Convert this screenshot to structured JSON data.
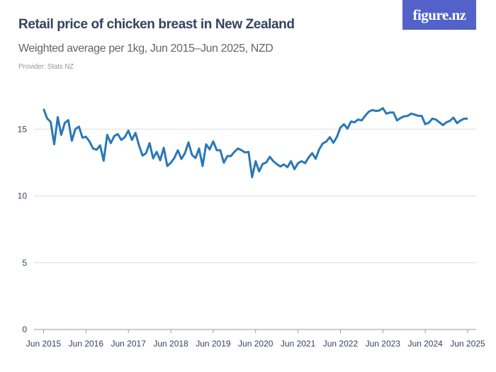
{
  "header": {
    "title": "Retail price of chicken breast in New Zealand",
    "subtitle": "Weighted average per 1kg, Jun 2015–Jun 2025, NZD",
    "provider": "Provider: Stats NZ",
    "logo_text": "figure.nz"
  },
  "colors": {
    "line": "#2a78b6",
    "logo_bg": "#5262c8",
    "grid": "#dddddd"
  },
  "chart_data": {
    "type": "line",
    "title": "Retail price of chicken breast in New Zealand",
    "ylim": [
      0,
      17
    ],
    "yticks": [
      0,
      5,
      10,
      15
    ],
    "ytick_labels": [
      "0",
      "5",
      "10",
      "15"
    ],
    "xtick_labels": [
      "Jun 2015",
      "Jun 2016",
      "Jun 2017",
      "Jun 2018",
      "Jun 2019",
      "Jun 2020",
      "Jun 2021",
      "Jun 2022",
      "Jun 2023",
      "Jun 2024",
      "Jun 2025"
    ],
    "grid": true,
    "x_start": "Jun 2015",
    "x_end": "Jun 2025",
    "frequency": "monthly",
    "values": [
      16.52,
      15.81,
      15.54,
      13.87,
      15.9,
      14.57,
      15.46,
      15.67,
      14.13,
      15.01,
      15.19,
      14.36,
      14.43,
      14.08,
      13.55,
      13.46,
      13.78,
      12.63,
      14.57,
      13.95,
      14.48,
      14.63,
      14.19,
      14.4,
      14.89,
      14.19,
      14.72,
      13.78,
      13.02,
      13.2,
      13.95,
      12.81,
      13.3,
      12.67,
      13.6,
      12.24,
      12.49,
      12.84,
      13.42,
      12.77,
      13.2,
      14.01,
      13.07,
      12.84,
      13.55,
      12.24,
      13.87,
      13.48,
      14.08,
      13.42,
      13.42,
      12.49,
      12.98,
      12.98,
      13.3,
      13.55,
      13.42,
      13.25,
      13.3,
      11.4,
      12.6,
      11.83,
      12.4,
      12.5,
      12.93,
      12.6,
      12.38,
      12.2,
      12.36,
      12.15,
      12.6,
      12.0,
      12.45,
      12.6,
      12.45,
      12.88,
      13.2,
      12.78,
      13.49,
      13.93,
      14.07,
      14.4,
      13.98,
      14.42,
      15.12,
      15.37,
      15.04,
      15.57,
      15.51,
      15.72,
      15.65,
      16.0,
      16.3,
      16.43,
      16.36,
      16.39,
      16.57,
      16.16,
      16.25,
      16.25,
      15.65,
      15.83,
      15.96,
      15.99,
      16.16,
      16.09,
      16.0,
      15.99,
      15.37,
      15.48,
      15.78,
      15.72,
      15.51,
      15.3,
      15.51,
      15.63,
      15.86,
      15.45,
      15.65,
      15.78,
      15.78
    ]
  }
}
